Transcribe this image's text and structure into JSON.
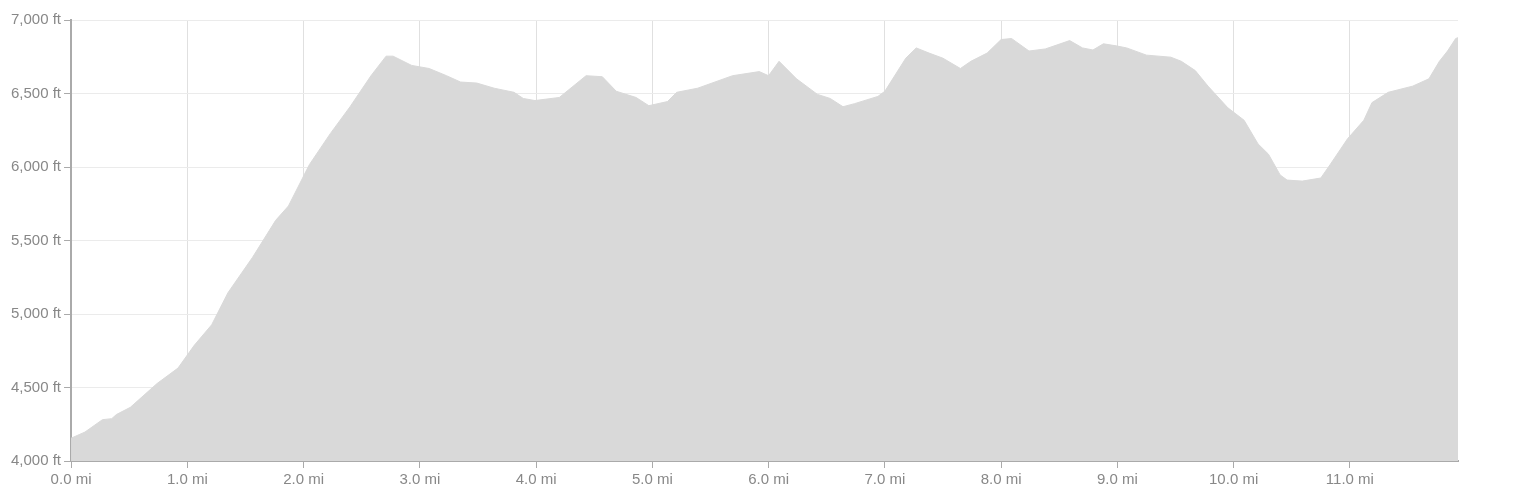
{
  "chart_data": {
    "type": "area",
    "color": "#d9d9d9",
    "x": [
      0,
      0.12,
      0.27,
      0.35,
      0.39,
      0.51,
      0.74,
      0.92,
      1.06,
      1.21,
      1.35,
      1.56,
      1.76,
      1.87,
      2.05,
      2.23,
      2.4,
      2.58,
      2.71,
      2.77,
      2.93,
      3.08,
      3.23,
      3.35,
      3.49,
      3.64,
      3.81,
      3.89,
      3.99,
      4.2,
      4.43,
      4.57,
      4.69,
      4.86,
      4.97,
      5.13,
      5.21,
      5.39,
      5.69,
      5.92,
      6,
      6.09,
      6.24,
      6.42,
      6.53,
      6.64,
      6.74,
      6.94,
      7,
      7.18,
      7.27,
      7.38,
      7.5,
      7.65,
      7.74,
      7.88,
      8,
      8.09,
      8.24,
      8.38,
      8.59,
      8.7,
      8.79,
      8.88,
      8.99,
      9.08,
      9.25,
      9.46,
      9.55,
      9.67,
      9.78,
      9.95,
      10.09,
      10.21,
      10.3,
      10.4,
      10.46,
      10.59,
      10.75,
      10.83,
      10.98,
      11.12,
      11.19,
      11.33,
      11.54,
      11.68,
      11.77,
      11.84,
      11.91,
      11.93
    ],
    "values": [
      4155,
      4197,
      4281,
      4288,
      4316,
      4365,
      4527,
      4632,
      4787,
      4927,
      5145,
      5384,
      5637,
      5735,
      6016,
      6227,
      6410,
      6621,
      6754,
      6754,
      6691,
      6670,
      6621,
      6578,
      6571,
      6536,
      6508,
      6466,
      6452,
      6473,
      6621,
      6614,
      6515,
      6473,
      6417,
      6445,
      6508,
      6536,
      6621,
      6649,
      6621,
      6719,
      6600,
      6494,
      6466,
      6410,
      6431,
      6480,
      6515,
      6740,
      6810,
      6775,
      6740,
      6670,
      6719,
      6775,
      6867,
      6874,
      6789,
      6803,
      6860,
      6810,
      6796,
      6838,
      6824,
      6810,
      6761,
      6747,
      6719,
      6656,
      6550,
      6403,
      6318,
      6157,
      6087,
      5946,
      5911,
      5904,
      5925,
      6016,
      6192,
      6318,
      6438,
      6508,
      6550,
      6600,
      6719,
      6789,
      6874,
      6880
    ],
    "xlim": [
      0,
      11.93
    ],
    "xticks": [
      {
        "value": 0,
        "label": "0.0 mi"
      },
      {
        "value": 1,
        "label": "1.0 mi"
      },
      {
        "value": 2,
        "label": "2.0 mi"
      },
      {
        "value": 3,
        "label": "3.0 mi"
      },
      {
        "value": 4,
        "label": "4.0 mi"
      },
      {
        "value": 5,
        "label": "5.0 mi"
      },
      {
        "value": 6,
        "label": "6.0 mi"
      },
      {
        "value": 7,
        "label": "7.0 mi"
      },
      {
        "value": 8,
        "label": "8.0 mi"
      },
      {
        "value": 9,
        "label": "9.0 mi"
      },
      {
        "value": 10,
        "label": "10.0 mi"
      },
      {
        "value": 11,
        "label": "11.0 mi"
      }
    ],
    "ylim": [
      4000,
      7000
    ],
    "yticks": [
      {
        "value": 4000,
        "label": "4,000 ft"
      },
      {
        "value": 4500,
        "label": "4,500 ft"
      },
      {
        "value": 5000,
        "label": "5,000 ft"
      },
      {
        "value": 5500,
        "label": "5,500 ft"
      },
      {
        "value": 6000,
        "label": "6,000 ft"
      },
      {
        "value": 6500,
        "label": "6,500 ft"
      },
      {
        "value": 7000,
        "label": "7,000 ft"
      }
    ],
    "grid": true,
    "marker": "none"
  }
}
